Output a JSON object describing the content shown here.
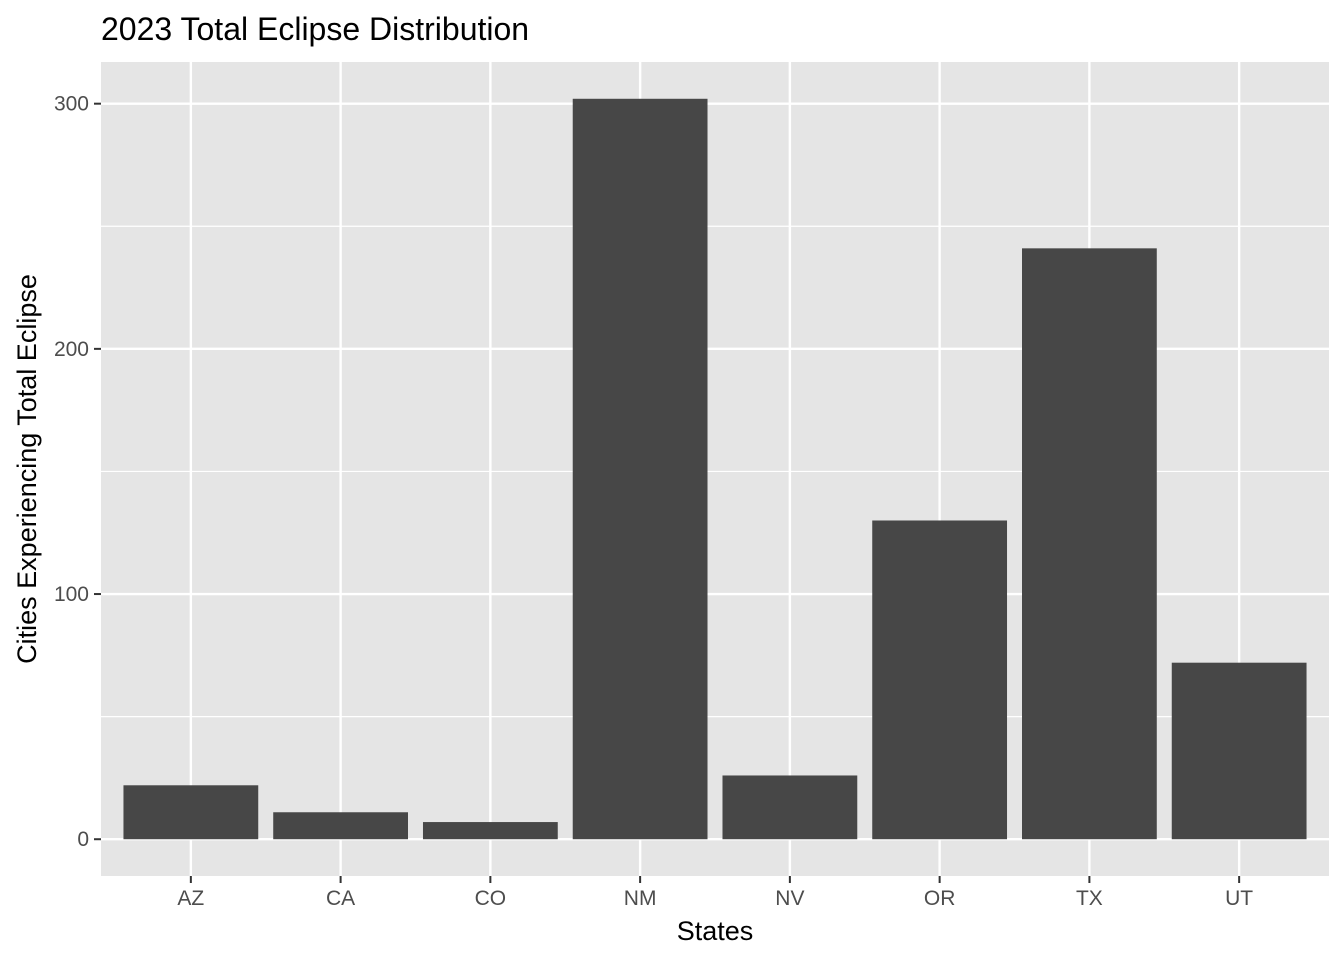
{
  "chart_data": {
    "type": "bar",
    "title": "2023 Total Eclipse Distribution",
    "xlabel": "States",
    "ylabel": "Cities Experiencing Total Eclipse",
    "categories": [
      "AZ",
      "CA",
      "CO",
      "NM",
      "NV",
      "OR",
      "TX",
      "UT"
    ],
    "values": [
      22,
      11,
      7,
      302,
      26,
      130,
      241,
      72
    ],
    "ylim": [
      -15,
      317
    ],
    "yticks": [
      0,
      100,
      200,
      300
    ],
    "grid": true,
    "colors": {
      "bar": "#474747",
      "panel": "#e5e5e5",
      "grid": "#ffffff",
      "tick_text": "#4d4d4d"
    }
  }
}
